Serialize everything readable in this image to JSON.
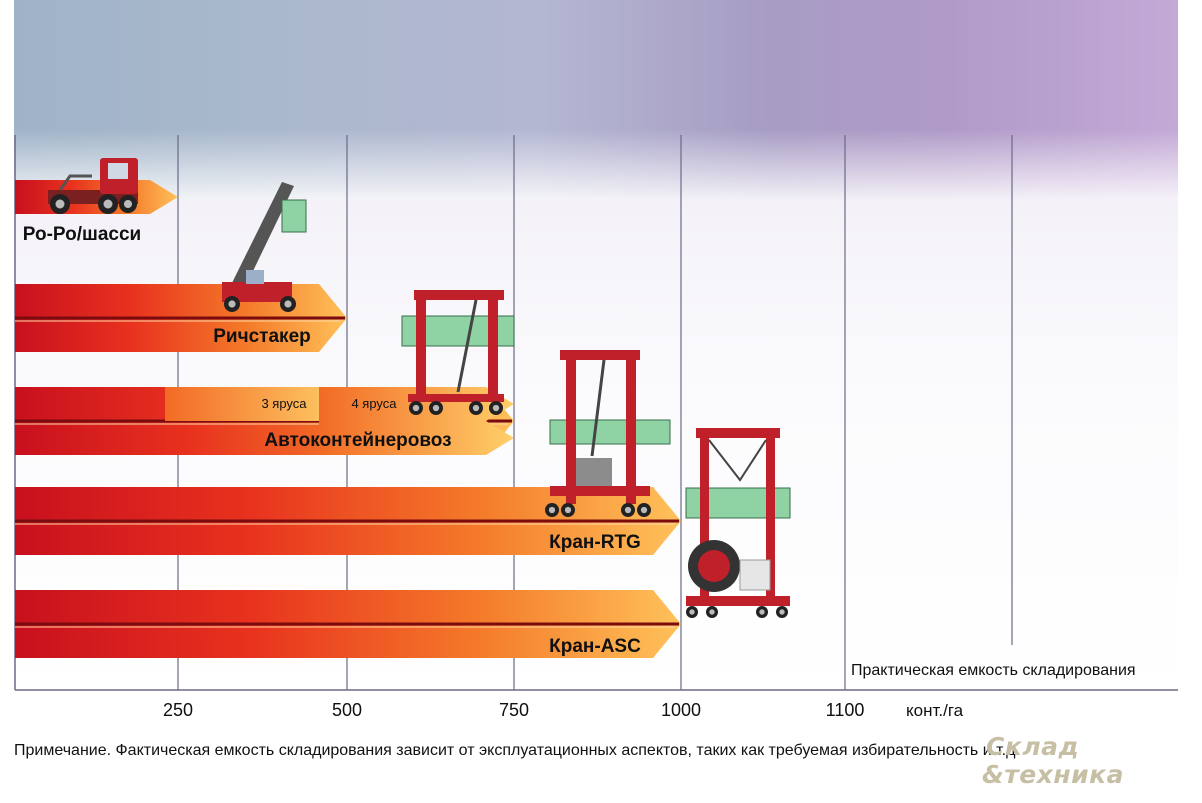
{
  "chart_data": {
    "type": "bar",
    "xlabel": "конт./га",
    "x_ticks": [
      250,
      500,
      750,
      1000,
      1100
    ],
    "xlim": [
      0,
      1175
    ],
    "grid": "vertical",
    "zone_label": "Практическая емкость складирования",
    "categories": [
      "Ро-Ро/шасси",
      "Ричстакер",
      "Автоконтейнеровоз",
      "Кран-RTG",
      "Кран-ASC"
    ],
    "values": [
      250,
      500,
      750,
      1000,
      1000
    ],
    "segments": [
      {
        "category": "Автоконтейнеровоз",
        "label": "3 яруса",
        "value": 500
      },
      {
        "category": "Автоконтейнеровоз",
        "label": "4 яруса",
        "value": 750
      }
    ]
  },
  "note": "Примечание. Фактическая емкость складирования зависит от эксплуатационных аспектов, таких как требуемая избирательность и т.д.",
  "logo": {
    "line1": "Склад",
    "line2": "&техника"
  },
  "colors": {
    "bar_dark": "#c8101e",
    "bar_mid": "#f0501e",
    "bar_light": "#ffb347",
    "machine": "#c0202a",
    "container": "#8fd2a4"
  }
}
